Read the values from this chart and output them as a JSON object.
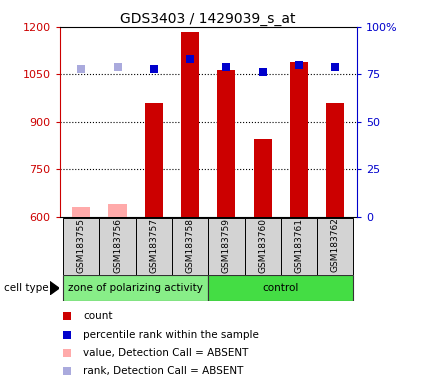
{
  "title": "GDS3403 / 1429039_s_at",
  "samples": [
    "GSM183755",
    "GSM183756",
    "GSM183757",
    "GSM183758",
    "GSM183759",
    "GSM183760",
    "GSM183761",
    "GSM183762"
  ],
  "values": [
    null,
    null,
    960,
    1185,
    1065,
    845,
    1090,
    960
  ],
  "absent_values": [
    630,
    640,
    null,
    null,
    null,
    null,
    null,
    null
  ],
  "percentile_ranks": [
    null,
    null,
    78,
    83,
    79,
    76,
    80,
    79
  ],
  "absent_ranks": [
    78,
    79,
    null,
    null,
    null,
    null,
    null,
    null
  ],
  "ylim_left": [
    600,
    1200
  ],
  "ylim_right": [
    0,
    100
  ],
  "yticks_left": [
    600,
    750,
    900,
    1050,
    1200
  ],
  "yticks_right": [
    0,
    25,
    50,
    75,
    100
  ],
  "bar_color": "#cc0000",
  "absent_bar_color": "#ffaaaa",
  "rank_color": "#0000cc",
  "absent_rank_color": "#aaaadd",
  "group1_label": "zone of polarizing activity",
  "group2_label": "control",
  "group1_color": "#88ee88",
  "group2_color": "#44dd44",
  "cell_type_label": "cell type",
  "legend_items": [
    {
      "label": "count",
      "color": "#cc0000"
    },
    {
      "label": "percentile rank within the sample",
      "color": "#0000cc"
    },
    {
      "label": "value, Detection Call = ABSENT",
      "color": "#ffaaaa"
    },
    {
      "label": "rank, Detection Call = ABSENT",
      "color": "#aaaadd"
    }
  ],
  "bar_width": 0.5,
  "rank_marker_size": 6,
  "n_group1": 4,
  "n_group2": 4
}
